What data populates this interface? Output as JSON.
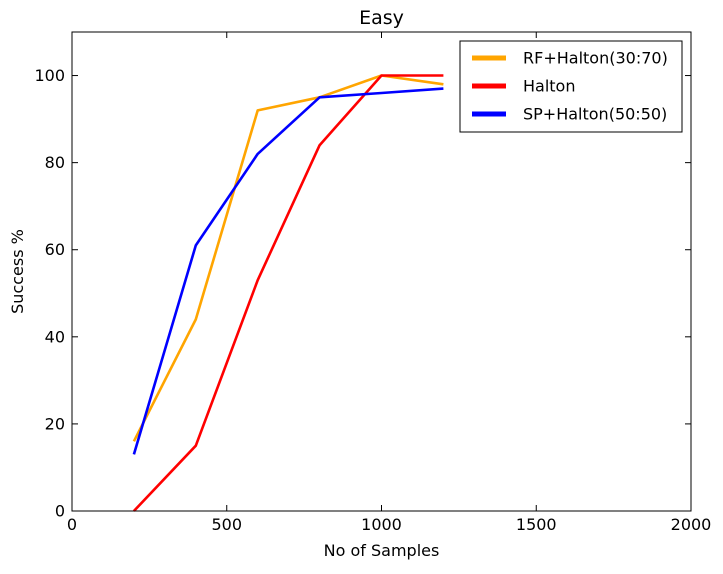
{
  "chart_data": {
    "type": "line",
    "title": "Easy",
    "xlabel": "No of Samples",
    "ylabel": "Success %",
    "xlim": [
      0,
      2000
    ],
    "ylim": [
      0,
      110
    ],
    "xticks": [
      0,
      500,
      1000,
      1500,
      2000
    ],
    "yticks": [
      0,
      20,
      40,
      60,
      80,
      100
    ],
    "grid": false,
    "legend_position": "top-right",
    "x": [
      200,
      400,
      600,
      800,
      1000,
      1200
    ],
    "series": [
      {
        "name": "RF+Halton(30:70)",
        "color": "#FFA500",
        "values": [
          16,
          44,
          92,
          95,
          100,
          98
        ]
      },
      {
        "name": "Halton",
        "color": "#FF0000",
        "values": [
          0,
          15,
          53,
          84,
          100,
          100
        ]
      },
      {
        "name": "SP+Halton(50:50)",
        "color": "#0000FF",
        "values": [
          13,
          61,
          82,
          95,
          96,
          97
        ]
      }
    ]
  }
}
